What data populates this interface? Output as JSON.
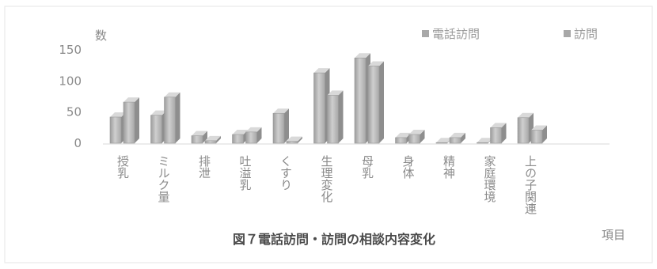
{
  "chart_data": {
    "type": "bar",
    "title": "図７電話訪問・訪問の相談内容変化",
    "ylabel": "数",
    "xlabel": "項目",
    "ylim": [
      0,
      150
    ],
    "yticks": [
      0,
      50,
      100,
      150
    ],
    "legend_position": "top-right",
    "categories": [
      "授乳",
      "ミルク量",
      "排泄",
      "吐溢乳",
      "くすり",
      "生理変化",
      "母乳",
      "身体",
      "精神",
      "家庭環境",
      "上の子関連"
    ],
    "series": [
      {
        "name": "電話訪問",
        "color": "#b9b9b9",
        "values": [
          42,
          45,
          12,
          14,
          48,
          113,
          137,
          9,
          1,
          1,
          41
        ]
      },
      {
        "name": "訪問",
        "color": "#b9b9b9",
        "values": [
          66,
          74,
          4,
          18,
          3,
          77,
          124,
          14,
          9,
          25,
          21
        ]
      }
    ],
    "grid": false
  }
}
